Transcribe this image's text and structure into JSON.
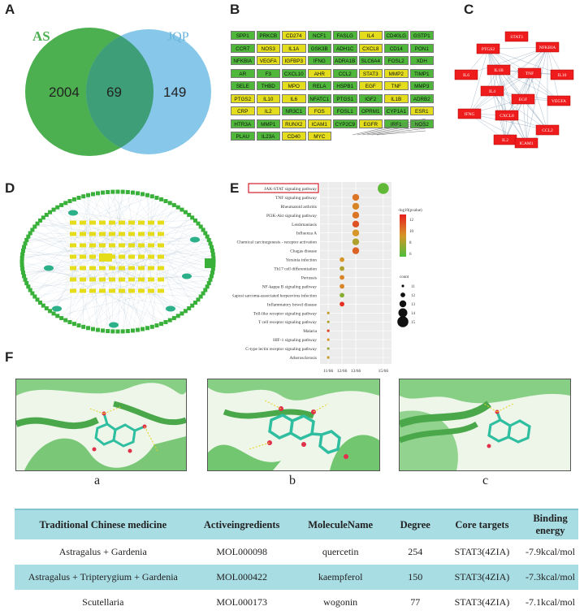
{
  "panel_labels": {
    "a": "A",
    "b": "B",
    "c": "C",
    "d": "D",
    "e": "E",
    "f": "F"
  },
  "venn": {
    "left_label": "AS",
    "right_label": "JQP",
    "left_only": "2004",
    "overlap": "69",
    "right_only": "149",
    "left_color": "#4caf50",
    "right_color": "#87c8ea",
    "overlap_color": "#3e9e78"
  },
  "gene_grid": {
    "rows": [
      [
        [
          "SPP1",
          "g"
        ],
        [
          "PRKCB",
          "g"
        ],
        [
          "CD274",
          "y"
        ],
        [
          "NCF1",
          "g"
        ],
        [
          "FASLG",
          "g"
        ],
        [
          "IL4",
          "y"
        ],
        [
          "CD40LG",
          "g"
        ],
        [
          "GSTP1",
          "g"
        ]
      ],
      [
        [
          "CCR7",
          "g"
        ],
        [
          "NOS3",
          "y"
        ],
        [
          "IL1A",
          "y"
        ],
        [
          "GSK3B",
          "g"
        ],
        [
          "ADH1C",
          "g"
        ],
        [
          "CXCL8",
          "y"
        ],
        [
          "CD14",
          "g"
        ],
        [
          "PON1",
          "g"
        ]
      ],
      [
        [
          "NFKBIA",
          "g"
        ],
        [
          "VEGFA",
          "y"
        ],
        [
          "IGFBP3",
          "y"
        ],
        [
          "IFNG",
          "g"
        ],
        [
          "ADRA1B",
          "g"
        ],
        [
          "SLC6A4",
          "g"
        ],
        [
          "FOSL2",
          "g"
        ],
        [
          "XDH",
          "g"
        ]
      ],
      [
        [
          "AR",
          "g"
        ],
        [
          "F3",
          "g"
        ],
        [
          "CXCL10",
          "g"
        ],
        [
          "AHR",
          "y"
        ],
        [
          "CCL2",
          "g"
        ],
        [
          "STAT3",
          "y"
        ],
        [
          "MMP2",
          "y"
        ],
        [
          "TIMP1",
          "g"
        ]
      ],
      [
        [
          "SELE",
          "g"
        ],
        [
          "THBD",
          "g"
        ],
        [
          "MPO",
          "y"
        ],
        [
          "RELA",
          "g"
        ],
        [
          "HSPB1",
          "g"
        ],
        [
          "EGF",
          "y"
        ],
        [
          "TNF",
          "y"
        ],
        [
          "MMP3",
          "g"
        ]
      ],
      [
        [
          "PTGS2",
          "y"
        ],
        [
          "IL10",
          "y"
        ],
        [
          "IL6",
          "y"
        ],
        [
          "NFATC1",
          "g"
        ],
        [
          "PTGS1",
          "g"
        ],
        [
          "IGF2",
          "g"
        ],
        [
          "IL1B",
          "y"
        ],
        [
          "ADRB2",
          "g"
        ]
      ],
      [
        [
          "CRP",
          "y"
        ],
        [
          "IL2",
          "y"
        ],
        [
          "NR3C1",
          "g"
        ],
        [
          "FOS",
          "y"
        ],
        [
          "FOSL1",
          "g"
        ],
        [
          "OPRM1",
          "g"
        ],
        [
          "CYP1A1",
          "g"
        ],
        [
          "ESR1",
          "y"
        ]
      ],
      [
        [
          "HTR3A",
          "g"
        ],
        [
          "MMP1",
          "g"
        ],
        [
          "RUNX2",
          "y"
        ],
        [
          "ICAM1",
          "y"
        ],
        [
          "CYP2C9",
          "g"
        ],
        [
          "EGFR",
          "y"
        ],
        [
          "IRF1",
          "g"
        ],
        [
          "NOS2",
          "g"
        ]
      ],
      [
        [
          "PLAU",
          "g"
        ],
        [
          "IL23A",
          "g"
        ],
        [
          "CD40",
          "y"
        ],
        [
          "MYC",
          "y"
        ]
      ]
    ],
    "green": "#4fb83a",
    "yellow": "#e3dd1d"
  },
  "ppi_core": {
    "nodes": [
      "STAT3",
      "PTGS2",
      "NFKBIA",
      "IL6",
      "IL1B",
      "TNF",
      "IL10",
      "IL4",
      "EGF",
      "VEGFA",
      "IFNG",
      "CXCL8",
      "IL2",
      "CCL2",
      "ICAM1"
    ],
    "node_color": "#ee1c1c"
  },
  "chart_data": {
    "type": "scatter",
    "categories": [
      "JAK-STAT signaling pathway",
      "TNF signaling pathway",
      "Rheumatoid arthritis",
      "PI3K-Akt signaling pathway",
      "Leishmaniasis",
      "Influenza A",
      "Chemical carcinogenesis - receptor activation",
      "Chagas disease",
      "Yersinia infection",
      "Th17 cell differentiation",
      "Pertussis",
      "NF-kappa B signaling pathway",
      "Kaposi sarcoma-associated herpesvirus infection",
      "Inflammatory bowel disease",
      "Toll-like receptor signaling pathway",
      "T cell receptor signaling pathway",
      "Malaria",
      "HIF-1 signaling pathway",
      "C-type lectin receptor signaling pathway",
      "Atherosclerosis"
    ],
    "highlighted": "JAK-STAT signaling pathway",
    "x": [
      15,
      13,
      13,
      13,
      13,
      13,
      13,
      13,
      12,
      12,
      12,
      12,
      12,
      12,
      11,
      11,
      11,
      11,
      11,
      11
    ],
    "x_tick_labels": [
      "11/66",
      "12/66",
      "13/66",
      "15/66"
    ],
    "neglog10_p": [
      6.5,
      10.5,
      10,
      10.5,
      11.5,
      9.5,
      8.5,
      11,
      9.5,
      8.5,
      10,
      10,
      7.5,
      12.5,
      9,
      8.5,
      12,
      9.5,
      8,
      9
    ],
    "count": [
      15,
      13,
      13,
      13,
      13,
      13,
      13,
      13,
      12,
      12,
      12,
      12,
      12,
      12,
      11,
      11,
      11,
      11,
      11,
      11
    ],
    "color_legend_title": "-log10(pvalue)",
    "color_ticks": [
      "12",
      "10",
      "8",
      "6"
    ],
    "size_legend_title": "count",
    "size_ticks": [
      "11",
      "12",
      "13",
      "14",
      "15"
    ]
  },
  "docking_captions": [
    "a",
    "b",
    "c"
  ],
  "table": {
    "headers": [
      "Traditional Chinese medicine",
      "Activeingredients",
      "MoleculeName",
      "Degree",
      "Core targets",
      "Binding energy"
    ],
    "rows": [
      [
        "Astragalus + Gardenia",
        "MOL000098",
        "quercetin",
        "254",
        "STAT3(4ZIA)",
        "-7.9kcal/mol"
      ],
      [
        "Astragalus + Tripterygium + Gardenia",
        "MOL000422",
        "kaempferol",
        "150",
        "STAT3(4ZIA)",
        "-7.3kcal/mol"
      ],
      [
        "Scutellaria",
        "MOL000173",
        "wogonin",
        "77",
        "STAT3(4ZIA)",
        "-7.1kcal/mol"
      ]
    ]
  }
}
